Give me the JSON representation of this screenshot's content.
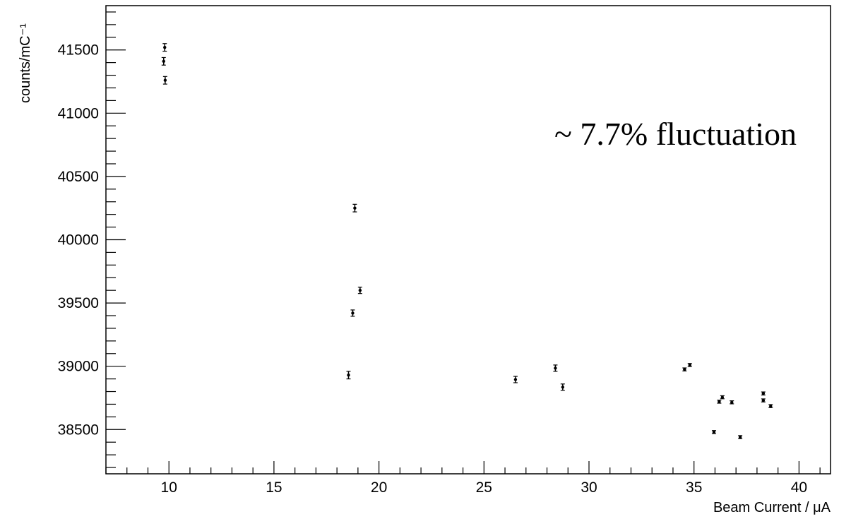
{
  "chart_data": {
    "type": "scatter",
    "title": "",
    "xlabel": "Beam Current / μA",
    "ylabel": "counts/mC⁻¹",
    "annotation": "~ 7.7% fluctuation",
    "xlim": [
      7,
      41.5
    ],
    "ylim": [
      38150,
      41850
    ],
    "xticks": [
      10,
      15,
      20,
      25,
      30,
      35,
      40
    ],
    "yticks": [
      38500,
      39000,
      39500,
      40000,
      40500,
      41000,
      41500
    ],
    "grid": false,
    "legend": "none",
    "marker_color": "#000000",
    "series": [
      {
        "points": [
          {
            "x": 9.8,
            "y": 41520,
            "err": 30
          },
          {
            "x": 9.75,
            "y": 41410,
            "err": 30
          },
          {
            "x": 9.82,
            "y": 41260,
            "err": 30
          },
          {
            "x": 18.85,
            "y": 40250,
            "err": 30
          },
          {
            "x": 19.1,
            "y": 39600,
            "err": 25
          },
          {
            "x": 18.75,
            "y": 39420,
            "err": 25
          },
          {
            "x": 18.55,
            "y": 38930,
            "err": 30
          },
          {
            "x": 26.5,
            "y": 38895,
            "err": 25
          },
          {
            "x": 28.4,
            "y": 38985,
            "err": 25
          },
          {
            "x": 28.75,
            "y": 38835,
            "err": 25
          },
          {
            "x": 34.55,
            "y": 38975,
            "err": 12
          },
          {
            "x": 34.8,
            "y": 39010,
            "err": 12
          },
          {
            "x": 35.95,
            "y": 38480,
            "err": 12
          },
          {
            "x": 36.2,
            "y": 38720,
            "err": 12
          },
          {
            "x": 36.35,
            "y": 38755,
            "err": 12
          },
          {
            "x": 36.8,
            "y": 38715,
            "err": 12
          },
          {
            "x": 37.2,
            "y": 38440,
            "err": 12
          },
          {
            "x": 38.3,
            "y": 38785,
            "err": 12
          },
          {
            "x": 38.3,
            "y": 38730,
            "err": 12
          },
          {
            "x": 38.65,
            "y": 38685,
            "err": 12
          }
        ]
      }
    ]
  }
}
